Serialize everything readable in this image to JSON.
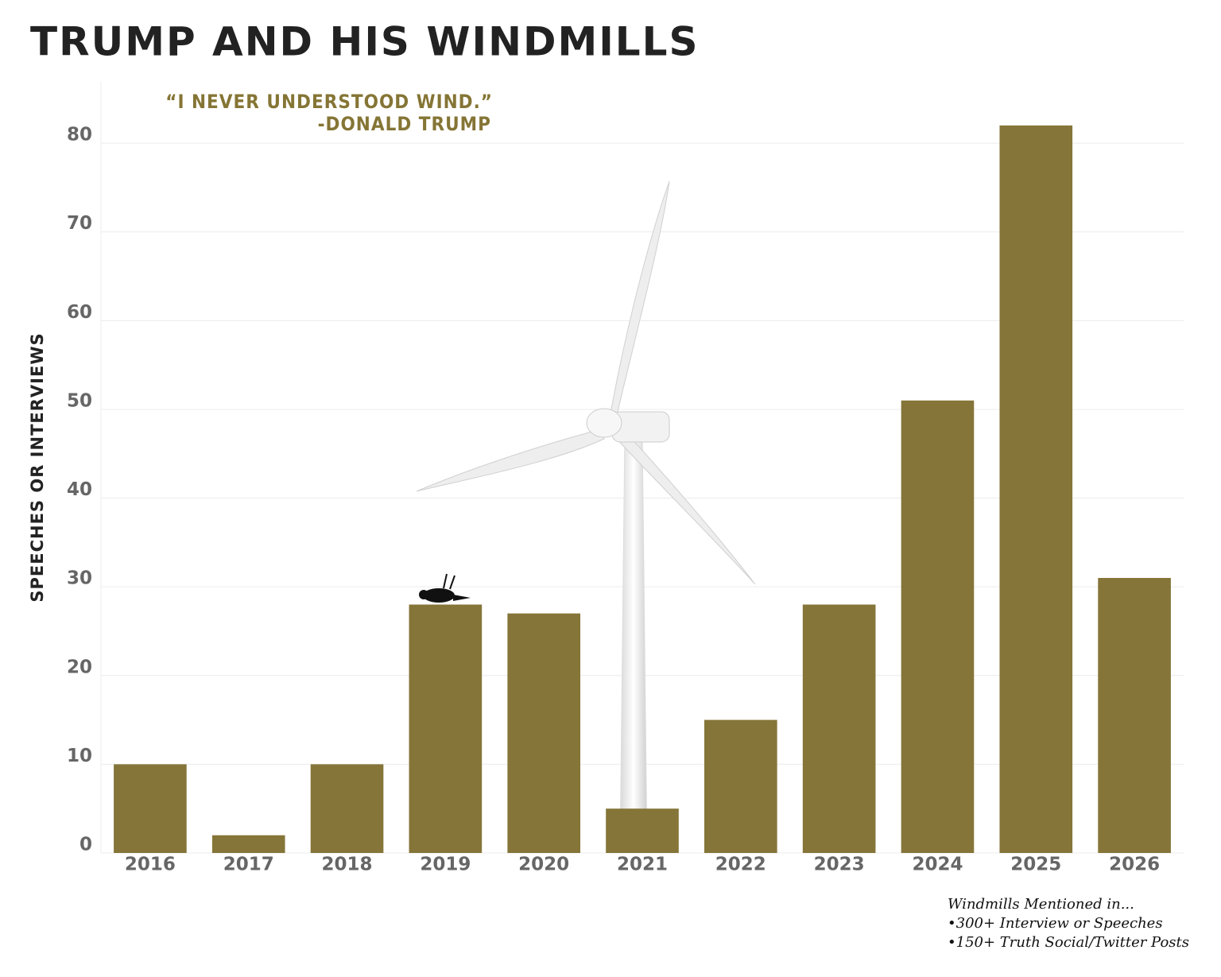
{
  "chart_data": {
    "type": "bar",
    "title": "TRUMP AND HIS WINDMILLS",
    "annotations": [
      "“I NEVER UNDERSTOOD WIND.”",
      "-DONALD TRUMP"
    ],
    "y_label": "SPEECHES OR INTERVIEWS",
    "notes": [
      "Windmills Mentioned in...",
      "•300+ Interview or Speeches",
      "•150+ Truth Social/Twitter Posts"
    ],
    "categories": [
      "2016",
      "2017",
      "2018",
      "2019",
      "2020",
      "2021",
      "2022",
      "2023",
      "2024",
      "2025",
      "2026"
    ],
    "values": [
      10,
      2,
      10,
      28,
      27,
      5,
      15,
      28,
      51,
      82,
      31
    ],
    "color": "#857538",
    "ylim": [
      0,
      87
    ],
    "yticks": [
      0,
      10,
      20,
      30,
      40,
      50,
      60,
      70,
      80
    ],
    "grid": true
  }
}
